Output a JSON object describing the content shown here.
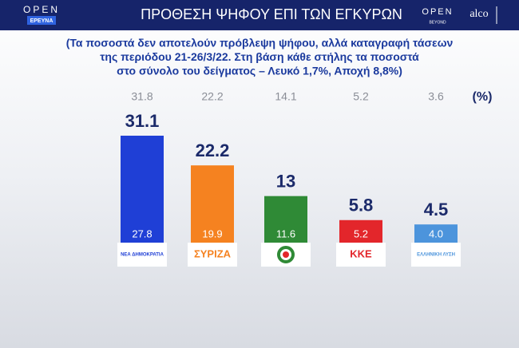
{
  "header": {
    "logo_left_top": "OPEN",
    "logo_left_bottom": "ΕΡΕΥΝΑ",
    "logo_right_1": "OPEN",
    "logo_right_1_sub": "BEYOND",
    "logo_right_2": "alco"
  },
  "chart_data": {
    "type": "bar",
    "title": "ΠΡΟΘΕΣΗ ΨΗΦΟΥ ΕΠΙ ΤΩΝ ΕΓΚΥΡΩΝ",
    "subtitle": [
      "(Τα ποσοστά δεν αποτελούν πρόβλεψη ψήφου, αλλά καταγραφή τάσεων",
      "της περιόδου 21-26/3/22. Στη βάση κάθε στήλης τα ποσοστά",
      "στο σύνολο του δείγματος – Λευκό 1,7%, Αποχή 8,8%)"
    ],
    "unit": "(%)",
    "categories": [
      "ΝΕΑ ΔΗΜΟΚΡΑΤΙΑ",
      "ΣΥΡΙΖΑ",
      null,
      "ΚΚΕ",
      "ΕΛΛΗΝΙΚΗ ΛΥΣΗ"
    ],
    "values": [
      31.1,
      22.2,
      13,
      5.8,
      4.5
    ],
    "colors": [
      "#1f3fd6",
      "#f58220",
      "#2f8a36",
      "#e3262b",
      "#4c94dc"
    ],
    "base_values": [
      27.8,
      19.9,
      11.6,
      5.2,
      4
    ],
    "base_value_labels": [
      "27.8",
      "19.9",
      "11.6",
      "5.2",
      "4.0"
    ],
    "previous_values": [
      31.8,
      22.2,
      14.1,
      5.2,
      3.6
    ]
  }
}
